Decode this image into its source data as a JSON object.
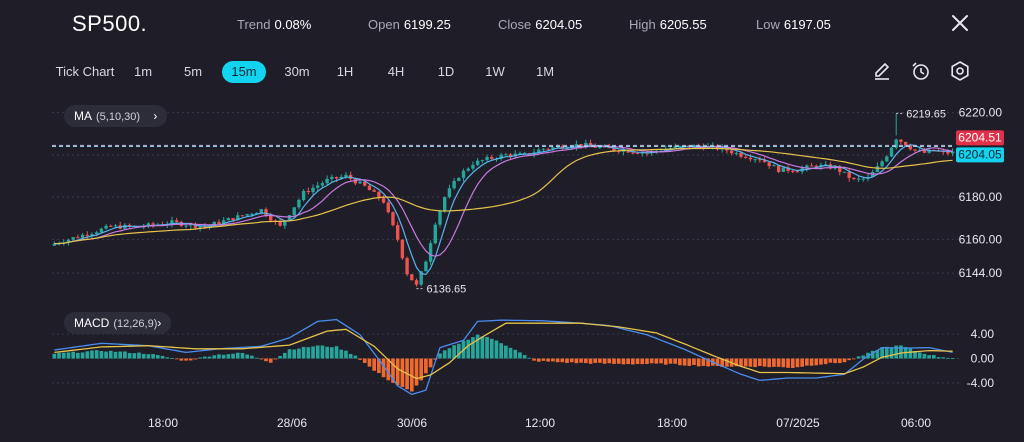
{
  "header": {
    "symbol": "SP500.",
    "trend_label": "Trend",
    "trend_value": "0.08%",
    "open_label": "Open",
    "open_value": "6199.25",
    "close_label": "Close",
    "close_value": "6204.05",
    "high_label": "High",
    "high_value": "6205.55",
    "low_label": "Low",
    "low_value": "6197.05"
  },
  "timeframes": [
    "Tick Chart",
    "1m",
    "5m",
    "15m",
    "30m",
    "1H",
    "4H",
    "1D",
    "1W",
    "1M"
  ],
  "active_timeframe": "15m",
  "tools": [
    "pencil-icon",
    "timer-icon",
    "settings-icon"
  ],
  "indicators": {
    "ma": {
      "name": "MA",
      "params": "(5,10,30)"
    },
    "macd": {
      "name": "MACD",
      "params": "(12,26,9)"
    }
  },
  "colors": {
    "up": "#26a69a",
    "down": "#ef5350",
    "ma5": "#5ab4f0",
    "ma10": "#c77ae0",
    "ma30": "#e6c24a",
    "macd": "#4a8df0",
    "signal": "#e6c24a",
    "hist_up": "#26a69a",
    "hist_down": "#f06a30",
    "ask_badge": "#e0304a",
    "bid_badge": "#13d4f0"
  },
  "chart_data": [
    {
      "type": "candlestick",
      "name": "MA (5,10,30)",
      "ylim": [
        6136,
        6226
      ],
      "y_ticks": [
        "6220.00",
        "6200.00",
        "6180.00",
        "6160.00",
        "6144.00"
      ],
      "x_ticks": [
        "18:00",
        "28/06",
        "30/06",
        "12:00",
        "18:00",
        "07/2025",
        "06:00"
      ],
      "annotations": {
        "high_marker": "6219.65",
        "low_marker": "6136.65"
      },
      "price_badges": {
        "ask": "6204.51",
        "last": "6204.05"
      },
      "close_path": [
        [
          0,
          6158
        ],
        [
          6,
          6162
        ],
        [
          12,
          6166
        ],
        [
          18,
          6166
        ],
        [
          25,
          6168
        ],
        [
          32,
          6166
        ],
        [
          38,
          6170
        ],
        [
          44,
          6174
        ],
        [
          48,
          6166
        ],
        [
          53,
          6182
        ],
        [
          58,
          6188
        ],
        [
          62,
          6190
        ],
        [
          66,
          6185
        ],
        [
          70,
          6178
        ],
        [
          73,
          6160
        ],
        [
          75,
          6144
        ],
        [
          77,
          6138
        ],
        [
          79,
          6150
        ],
        [
          81,
          6168
        ],
        [
          83,
          6180
        ],
        [
          86,
          6190
        ],
        [
          89,
          6196
        ],
        [
          92,
          6198
        ],
        [
          96,
          6200
        ],
        [
          100,
          6200
        ],
        [
          104,
          6203
        ],
        [
          108,
          6204
        ],
        [
          112,
          6205
        ],
        [
          117,
          6203
        ],
        [
          122,
          6202
        ],
        [
          126,
          6201
        ],
        [
          130,
          6203
        ],
        [
          134,
          6204
        ],
        [
          138,
          6204
        ],
        [
          142,
          6203
        ],
        [
          146,
          6200
        ],
        [
          150,
          6198
        ],
        [
          154,
          6193
        ],
        [
          158,
          6193
        ],
        [
          162,
          6195
        ],
        [
          166,
          6194
        ],
        [
          170,
          6188
        ],
        [
          173,
          6189
        ],
        [
          175,
          6194
        ],
        [
          177,
          6200
        ],
        [
          179,
          6208
        ],
        [
          181,
          6205
        ],
        [
          183,
          6202
        ],
        [
          185,
          6201
        ],
        [
          187,
          6202
        ],
        [
          189,
          6201
        ],
        [
          191,
          6201
        ]
      ]
    },
    {
      "type": "bar+line",
      "name": "MACD (12,26,9)",
      "ylim": [
        -6,
        6
      ],
      "y_ticks": [
        "4.00",
        "0.00",
        "-4.00"
      ],
      "histogram": [
        [
          0,
          0.8
        ],
        [
          10,
          1.3
        ],
        [
          20,
          0.8
        ],
        [
          28,
          -0.4
        ],
        [
          34,
          0.6
        ],
        [
          40,
          0.9
        ],
        [
          46,
          -0.6
        ],
        [
          50,
          1.5
        ],
        [
          56,
          2.1
        ],
        [
          60,
          1.9
        ],
        [
          64,
          0.5
        ],
        [
          68,
          -2.0
        ],
        [
          72,
          -4.0
        ],
        [
          76,
          -5.5
        ],
        [
          79,
          -2.5
        ],
        [
          82,
          0.8
        ],
        [
          86,
          2.5
        ],
        [
          90,
          3.9
        ],
        [
          94,
          3.0
        ],
        [
          98,
          1.4
        ],
        [
          102,
          -0.4
        ],
        [
          110,
          -0.7
        ],
        [
          120,
          -0.9
        ],
        [
          130,
          -0.9
        ],
        [
          140,
          -1.3
        ],
        [
          150,
          -1.3
        ],
        [
          157,
          -1.5
        ],
        [
          162,
          -1.0
        ],
        [
          168,
          -0.6
        ],
        [
          172,
          0.5
        ],
        [
          176,
          1.8
        ],
        [
          180,
          2.1
        ],
        [
          184,
          1.0
        ],
        [
          188,
          0.3
        ],
        [
          191,
          0.1
        ]
      ],
      "macd_line": [
        [
          0,
          1.4
        ],
        [
          10,
          2.5
        ],
        [
          20,
          2.1
        ],
        [
          28,
          1.0
        ],
        [
          35,
          1.6
        ],
        [
          44,
          2.0
        ],
        [
          50,
          3.4
        ],
        [
          56,
          6.1
        ],
        [
          60,
          6.4
        ],
        [
          65,
          3.9
        ],
        [
          70,
          -1.2
        ],
        [
          73,
          -4.5
        ],
        [
          76,
          -5.9
        ],
        [
          79,
          -5.2
        ],
        [
          82,
          1.8
        ],
        [
          87,
          3.0
        ],
        [
          90,
          6.1
        ],
        [
          95,
          6.3
        ],
        [
          104,
          6.2
        ],
        [
          112,
          5.8
        ],
        [
          118,
          5.4
        ],
        [
          126,
          3.9
        ],
        [
          134,
          1.5
        ],
        [
          140,
          -0.6
        ],
        [
          146,
          -2.6
        ],
        [
          150,
          -3.6
        ],
        [
          156,
          -3.2
        ],
        [
          162,
          -3.2
        ],
        [
          168,
          -2.6
        ],
        [
          172,
          -0.1
        ],
        [
          176,
          1.8
        ],
        [
          180,
          1.7
        ],
        [
          186,
          1.8
        ],
        [
          191,
          1.0
        ]
      ],
      "signal_line": [
        [
          0,
          1.0
        ],
        [
          10,
          1.9
        ],
        [
          20,
          2.1
        ],
        [
          30,
          1.6
        ],
        [
          40,
          1.6
        ],
        [
          50,
          2.2
        ],
        [
          58,
          4.5
        ],
        [
          62,
          4.8
        ],
        [
          68,
          2.0
        ],
        [
          73,
          -1.7
        ],
        [
          77,
          -3.3
        ],
        [
          80,
          -2.7
        ],
        [
          84,
          -0.7
        ],
        [
          88,
          2.1
        ],
        [
          92,
          4.0
        ],
        [
          96,
          5.8
        ],
        [
          104,
          5.8
        ],
        [
          112,
          5.8
        ],
        [
          120,
          5.2
        ],
        [
          128,
          4.2
        ],
        [
          134,
          2.4
        ],
        [
          140,
          0.5
        ],
        [
          146,
          -1.3
        ],
        [
          150,
          -2.3
        ],
        [
          156,
          -2.3
        ],
        [
          162,
          -2.4
        ],
        [
          168,
          -2.5
        ],
        [
          172,
          -1.4
        ],
        [
          176,
          0.2
        ],
        [
          180,
          0.9
        ],
        [
          186,
          1.3
        ],
        [
          191,
          1.2
        ]
      ]
    }
  ]
}
